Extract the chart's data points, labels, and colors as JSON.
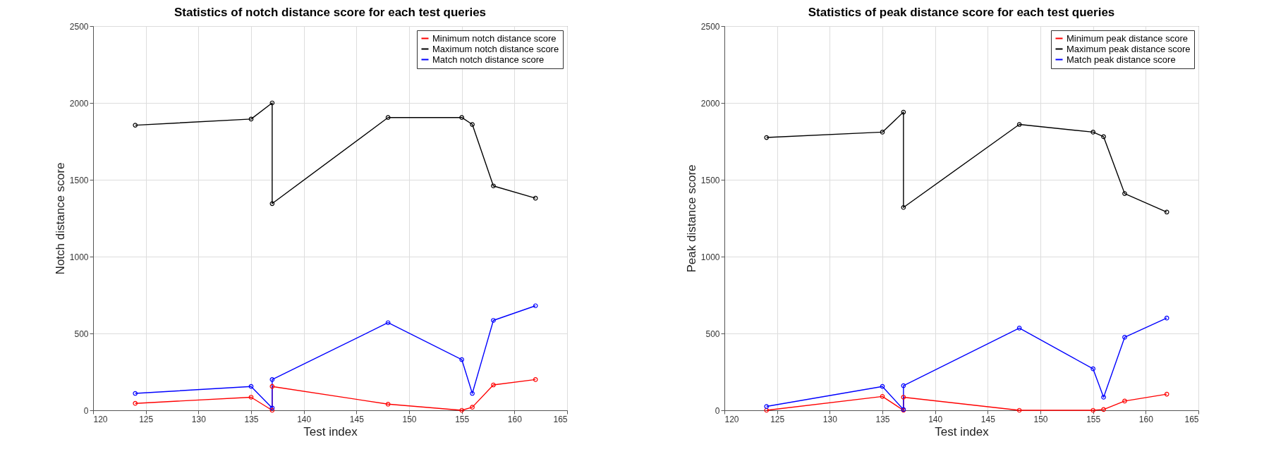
{
  "chart_data": [
    {
      "type": "line",
      "title": "Statistics of notch distance score for each test queries",
      "xlabel": "Test index",
      "ylabel": "Notch distance score",
      "x": [
        124,
        135,
        137,
        137,
        148,
        155,
        156,
        158,
        162
      ],
      "series": [
        {
          "name": "Minimum notch distance score",
          "color": "#ff0000",
          "values": [
            45,
            85,
            0,
            155,
            40,
            0,
            20,
            165,
            200
          ]
        },
        {
          "name": "Maximum notch distance score",
          "color": "#000000",
          "values": [
            1855,
            1895,
            2000,
            1345,
            1905,
            1905,
            1860,
            1460,
            1380
          ]
        },
        {
          "name": "Match notch distance score",
          "color": "#0000ff",
          "values": [
            110,
            155,
            15,
            200,
            570,
            330,
            110,
            585,
            680
          ]
        }
      ],
      "xlim": [
        120,
        165
      ],
      "xticks": [
        120,
        125,
        130,
        135,
        140,
        145,
        150,
        155,
        160,
        165
      ],
      "ylim": [
        0,
        2500
      ],
      "yticks": [
        0,
        500,
        1000,
        1500,
        2000,
        2500
      ],
      "grid": true,
      "legend": "top right",
      "marker": "circle",
      "line_style": "solid"
    },
    {
      "type": "line",
      "title": "Statistics of peak distance score for each test queries",
      "xlabel": "Test index",
      "ylabel": "Peak distance score",
      "x": [
        124,
        135,
        137,
        137,
        148,
        155,
        156,
        158,
        162
      ],
      "series": [
        {
          "name": "Minimum peak distance score",
          "color": "#ff0000",
          "values": [
            0,
            90,
            0,
            85,
            0,
            0,
            5,
            60,
            105
          ]
        },
        {
          "name": "Maximum peak distance score",
          "color": "#000000",
          "values": [
            1775,
            1810,
            1940,
            1320,
            1860,
            1810,
            1780,
            1410,
            1290
          ]
        },
        {
          "name": "Match peak distance score",
          "color": "#0000ff",
          "values": [
            25,
            155,
            5,
            160,
            535,
            270,
            85,
            475,
            600
          ]
        }
      ],
      "xlim": [
        120,
        165
      ],
      "xticks": [
        120,
        125,
        130,
        135,
        140,
        145,
        150,
        155,
        160,
        165
      ],
      "ylim": [
        0,
        2500
      ],
      "yticks": [
        0,
        500,
        1000,
        1500,
        2000,
        2500
      ],
      "grid": true,
      "legend": "top right",
      "marker": "circle",
      "line_style": "solid"
    }
  ]
}
